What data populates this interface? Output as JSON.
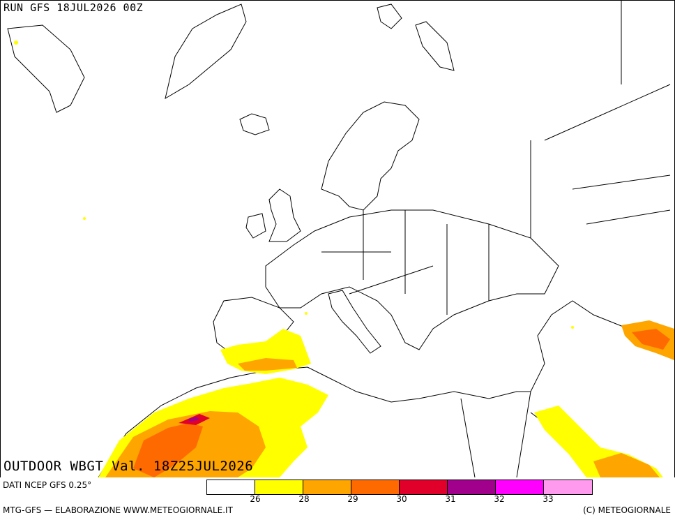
{
  "header": {
    "run_label": "RUN GFS 18JUL2026 00Z"
  },
  "title": {
    "product": "OUTDOOR WBGT Val. 18Z25JUL2026"
  },
  "footer": {
    "data_source": "DATI NCEP GFS 0.25°",
    "credits": "MTG-GFS — ELABORAZIONE WWW.METEOGIORNALE.IT",
    "copyright": "(C) METEOGIORNALE"
  },
  "legend": {
    "colors": [
      "#ffffff",
      "#ffff00",
      "#ffa500",
      "#ff6a00",
      "#e0002a",
      "#a0008c",
      "#ff00ff",
      "#ff9aee"
    ],
    "ticks": [
      "26",
      "28",
      "29",
      "30",
      "31",
      "32",
      "33"
    ]
  }
}
